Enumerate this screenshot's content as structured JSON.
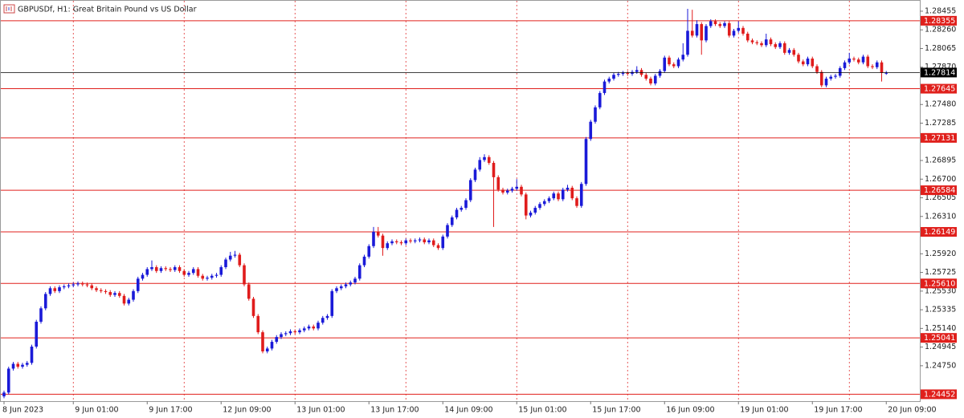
{
  "chart_data": {
    "type": "candlestick",
    "title": "GBPUSDf, H1:  Great Britain Pound vs US Dollar",
    "up_color": "#1a1ad8",
    "down_color": "#e01c1c",
    "level_color": "#e0201c",
    "current_price": 1.27814,
    "current_price_color": "#000000",
    "ylim": [
      1.2438,
      1.2853
    ],
    "yticks": [
      1.28455,
      {
        "value": 1.2826,
        "label": "1.28260"
      },
      1.28065,
      {
        "value": 1.2787,
        "label": "1.27870"
      },
      {
        "value": 1.2748,
        "label": "1.27480"
      },
      1.27285,
      1.26895,
      {
        "value": 1.267,
        "label": "1.26700"
      },
      1.26505,
      {
        "value": 1.2631,
        "label": "1.26310"
      },
      {
        "value": 1.2592,
        "label": "1.25920"
      },
      1.25725,
      {
        "value": 1.2553,
        "label": "1.25530"
      },
      1.25335,
      {
        "value": 1.2514,
        "label": "1.25140"
      },
      1.24945,
      {
        "value": 1.2475,
        "label": "1.24750"
      }
    ],
    "levels": [
      1.28355,
      1.27645,
      1.27131,
      1.26584,
      1.26149,
      {
        "value": 1.2561,
        "label": "1.25610"
      },
      1.25041,
      1.24452
    ],
    "categories": [
      "8 Jun 2023",
      null,
      null,
      null,
      null,
      null,
      null,
      null,
      null,
      null,
      null,
      null,
      null,
      null,
      null,
      "9 Jun 01:00",
      null,
      null,
      null,
      null,
      null,
      null,
      null,
      null,
      null,
      null,
      null,
      null,
      null,
      null,
      null,
      "9 Jun 17:00",
      null,
      null,
      null,
      null,
      null,
      null,
      null,
      null,
      null,
      null,
      null,
      null,
      null,
      null,
      null,
      "12 Jun 09:00",
      null,
      null,
      null,
      null,
      null,
      null,
      null,
      null,
      null,
      null,
      null,
      null,
      null,
      null,
      null,
      "13 Jun 01:00",
      null,
      null,
      null,
      null,
      null,
      null,
      null,
      null,
      null,
      null,
      null,
      null,
      null,
      null,
      null,
      "13 Jun 17:00",
      null,
      null,
      null,
      null,
      null,
      null,
      null,
      null,
      null,
      null,
      null,
      null,
      null,
      null,
      null,
      "14 Jun 09:00",
      null,
      null,
      null,
      null,
      null,
      null,
      null,
      null,
      null,
      null,
      null,
      null,
      null,
      null,
      null,
      "15 Jun 01:00",
      null,
      null,
      null,
      null,
      null,
      null,
      null,
      null,
      null,
      null,
      null,
      null,
      null,
      null,
      null,
      "15 Jun 17:00",
      null,
      null,
      null,
      null,
      null,
      null,
      null,
      null,
      null,
      null,
      null,
      null,
      null,
      null,
      null,
      "16 Jun 09:00",
      null,
      null,
      null,
      null,
      null,
      null,
      null,
      null,
      null,
      null,
      null,
      null,
      null,
      null,
      null,
      "19 Jun 01:00",
      null,
      null,
      null,
      null,
      null,
      null,
      null,
      null,
      null,
      null,
      null,
      null,
      null,
      null,
      null,
      "19 Jun 17:00",
      null,
      null,
      null,
      null,
      null,
      null,
      null,
      null,
      null,
      null,
      null,
      null,
      null,
      null,
      null,
      "20 Jun 09:00"
    ],
    "ohlc": [
      [
        1.2443,
        1.2449,
        1.2441,
        1.2447
      ],
      [
        1.2447,
        1.2474,
        1.2445,
        1.2472
      ],
      [
        1.2472,
        1.2479,
        1.247,
        1.2477
      ],
      [
        1.2477,
        1.2479,
        1.2472,
        1.2474
      ],
      [
        1.2474,
        1.2478,
        1.2472,
        1.2476
      ],
      [
        1.2476,
        1.248,
        1.2474,
        1.2478
      ],
      [
        1.2478,
        1.2497,
        1.2476,
        1.2495
      ],
      [
        1.2495,
        1.2523,
        1.2493,
        1.2521
      ],
      [
        1.2521,
        1.2537,
        1.2519,
        1.2535
      ],
      [
        1.2535,
        1.2552,
        1.2533,
        1.255
      ],
      [
        1.255,
        1.2558,
        1.2548,
        1.2556
      ],
      [
        1.2556,
        1.2558,
        1.2551,
        1.2553
      ],
      [
        1.2553,
        1.2559,
        1.2551,
        1.2557
      ],
      [
        1.2557,
        1.256,
        1.2555,
        1.2558
      ],
      [
        1.2558,
        1.2561,
        1.2556,
        1.2559
      ],
      [
        1.2559,
        1.2562,
        1.2557,
        1.256
      ],
      [
        1.256,
        1.2563,
        1.2558,
        1.2561
      ],
      [
        1.2561,
        1.2563,
        1.2558,
        1.256
      ],
      [
        1.256,
        1.2562,
        1.2557,
        1.2559
      ],
      [
        1.2559,
        1.2561,
        1.2554,
        1.2556
      ],
      [
        1.2556,
        1.2558,
        1.2552,
        1.2554
      ],
      [
        1.2554,
        1.2556,
        1.2551,
        1.2553
      ],
      [
        1.2553,
        1.2555,
        1.255,
        1.2552
      ],
      [
        1.2552,
        1.2554,
        1.2547,
        1.2549
      ],
      [
        1.2549,
        1.2553,
        1.2547,
        1.2551
      ],
      [
        1.2551,
        1.2553,
        1.2546,
        1.2548
      ],
      [
        1.2548,
        1.255,
        1.2538,
        1.254
      ],
      [
        1.254,
        1.2546,
        1.2538,
        1.2544
      ],
      [
        1.2544,
        1.2555,
        1.2542,
        1.2553
      ],
      [
        1.2553,
        1.2568,
        1.2551,
        1.2566
      ],
      [
        1.2566,
        1.2572,
        1.2564,
        1.257
      ],
      [
        1.257,
        1.2578,
        1.2568,
        1.2576
      ],
      [
        1.2576,
        1.2585,
        1.2574,
        1.2578
      ],
      [
        1.2578,
        1.258,
        1.2572,
        1.2574
      ],
      [
        1.2574,
        1.2579,
        1.2572,
        1.2577
      ],
      [
        1.2577,
        1.2579,
        1.2574,
        1.2576
      ],
      [
        1.2576,
        1.2578,
        1.2573,
        1.2575
      ],
      [
        1.2575,
        1.258,
        1.2573,
        1.2578
      ],
      [
        1.2578,
        1.258,
        1.2572,
        1.2574
      ],
      [
        1.2574,
        1.2576,
        1.2568,
        1.257
      ],
      [
        1.257,
        1.2574,
        1.2568,
        1.2572
      ],
      [
        1.2572,
        1.2578,
        1.257,
        1.2576
      ],
      [
        1.2576,
        1.2578,
        1.2567,
        1.2569
      ],
      [
        1.2569,
        1.2571,
        1.2564,
        1.2566
      ],
      [
        1.2566,
        1.2569,
        1.2564,
        1.2567
      ],
      [
        1.2567,
        1.2571,
        1.2565,
        1.2569
      ],
      [
        1.2569,
        1.2572,
        1.2567,
        1.257
      ],
      [
        1.257,
        1.258,
        1.2568,
        1.2578
      ],
      [
        1.2578,
        1.2588,
        1.2576,
        1.2586
      ],
      [
        1.2586,
        1.2594,
        1.2584,
        1.259
      ],
      [
        1.259,
        1.2595,
        1.2588,
        1.2591
      ],
      [
        1.2591,
        1.2593,
        1.2578,
        1.258
      ],
      [
        1.258,
        1.2582,
        1.2558,
        1.256
      ],
      [
        1.256,
        1.2562,
        1.2543,
        1.2545
      ],
      [
        1.2545,
        1.2547,
        1.2525,
        1.2527
      ],
      [
        1.2527,
        1.2529,
        1.2508,
        1.251
      ],
      [
        1.251,
        1.2512,
        1.2488,
        1.249
      ],
      [
        1.249,
        1.2495,
        1.2488,
        1.2493
      ],
      [
        1.2493,
        1.2502,
        1.2491,
        1.25
      ],
      [
        1.25,
        1.2507,
        1.2498,
        1.2505
      ],
      [
        1.2505,
        1.251,
        1.2503,
        1.2508
      ],
      [
        1.2508,
        1.2511,
        1.2506,
        1.2509
      ],
      [
        1.2509,
        1.2513,
        1.2507,
        1.2511
      ],
      [
        1.2511,
        1.2513,
        1.2508,
        1.251
      ],
      [
        1.251,
        1.2514,
        1.2508,
        1.2512
      ],
      [
        1.2512,
        1.2516,
        1.251,
        1.2514
      ],
      [
        1.2514,
        1.2518,
        1.2512,
        1.2516
      ],
      [
        1.2516,
        1.2518,
        1.2512,
        1.2514
      ],
      [
        1.2514,
        1.2522,
        1.2512,
        1.252
      ],
      [
        1.252,
        1.2527,
        1.2518,
        1.2525
      ],
      [
        1.2525,
        1.2529,
        1.2523,
        1.2527
      ],
      [
        1.2527,
        1.2555,
        1.2525,
        1.2553
      ],
      [
        1.2553,
        1.2558,
        1.2551,
        1.2556
      ],
      [
        1.2556,
        1.256,
        1.2554,
        1.2558
      ],
      [
        1.2558,
        1.2562,
        1.2556,
        1.256
      ],
      [
        1.256,
        1.2564,
        1.2558,
        1.2562
      ],
      [
        1.2562,
        1.2568,
        1.256,
        1.2566
      ],
      [
        1.2566,
        1.2582,
        1.2564,
        1.258
      ],
      [
        1.258,
        1.2591,
        1.2578,
        1.2589
      ],
      [
        1.2589,
        1.2602,
        1.2587,
        1.26
      ],
      [
        1.26,
        1.262,
        1.2598,
        1.2615
      ],
      [
        1.2615,
        1.262,
        1.2609,
        1.2611
      ],
      [
        1.2611,
        1.2613,
        1.259,
        1.2598
      ],
      [
        1.2598,
        1.2605,
        1.2596,
        1.2603
      ],
      [
        1.2603,
        1.2607,
        1.2601,
        1.2605
      ],
      [
        1.2605,
        1.2607,
        1.2602,
        1.2604
      ],
      [
        1.2604,
        1.2606,
        1.2601,
        1.2603
      ],
      [
        1.2603,
        1.2608,
        1.2601,
        1.2606
      ],
      [
        1.2606,
        1.2608,
        1.2603,
        1.2605
      ],
      [
        1.2605,
        1.2608,
        1.2603,
        1.2606
      ],
      [
        1.2606,
        1.2609,
        1.2604,
        1.2607
      ],
      [
        1.2607,
        1.2609,
        1.2602,
        1.2604
      ],
      [
        1.2604,
        1.2608,
        1.2602,
        1.2606
      ],
      [
        1.2606,
        1.2608,
        1.2599,
        1.2601
      ],
      [
        1.2601,
        1.2603,
        1.2596,
        1.2598
      ],
      [
        1.2598,
        1.2612,
        1.2596,
        1.261
      ],
      [
        1.261,
        1.2624,
        1.2608,
        1.2622
      ],
      [
        1.2622,
        1.2632,
        1.262,
        1.263
      ],
      [
        1.263,
        1.264,
        1.2628,
        1.2638
      ],
      [
        1.2638,
        1.2642,
        1.2636,
        1.264
      ],
      [
        1.264,
        1.265,
        1.2638,
        1.2648
      ],
      [
        1.2648,
        1.2671,
        1.2646,
        1.2669
      ],
      [
        1.2669,
        1.2682,
        1.2667,
        1.268
      ],
      [
        1.268,
        1.2693,
        1.2678,
        1.269
      ],
      [
        1.269,
        1.2696,
        1.2688,
        1.2693
      ],
      [
        1.2693,
        1.2695,
        1.2685,
        1.2687
      ],
      [
        1.2687,
        1.2689,
        1.262,
        1.2672
      ],
      [
        1.2672,
        1.2674,
        1.2657,
        1.2659
      ],
      [
        1.2659,
        1.2661,
        1.2654,
        1.2656
      ],
      [
        1.2656,
        1.266,
        1.2654,
        1.2658
      ],
      [
        1.2658,
        1.2662,
        1.2656,
        1.266
      ],
      [
        1.266,
        1.267,
        1.2658,
        1.2662
      ],
      [
        1.2662,
        1.2664,
        1.2652,
        1.2654
      ],
      [
        1.2654,
        1.2656,
        1.2628,
        1.2632
      ],
      [
        1.2632,
        1.2637,
        1.263,
        1.2635
      ],
      [
        1.2635,
        1.2642,
        1.2633,
        1.264
      ],
      [
        1.264,
        1.2646,
        1.2638,
        1.2644
      ],
      [
        1.2644,
        1.2649,
        1.2642,
        1.2647
      ],
      [
        1.2647,
        1.2652,
        1.2645,
        1.265
      ],
      [
        1.265,
        1.2657,
        1.2648,
        1.2655
      ],
      [
        1.2655,
        1.2657,
        1.2647,
        1.2649
      ],
      [
        1.2649,
        1.2661,
        1.2647,
        1.2659
      ],
      [
        1.2659,
        1.2664,
        1.2657,
        1.2661
      ],
      [
        1.2661,
        1.2663,
        1.2648,
        1.265
      ],
      [
        1.265,
        1.2652,
        1.264,
        1.2642
      ],
      [
        1.2642,
        1.2667,
        1.264,
        1.2665
      ],
      [
        1.2665,
        1.2714,
        1.2663,
        1.2712
      ],
      [
        1.2712,
        1.2732,
        1.271,
        1.273
      ],
      [
        1.273,
        1.2747,
        1.2728,
        1.2745
      ],
      [
        1.2745,
        1.2762,
        1.2743,
        1.276
      ],
      [
        1.276,
        1.2774,
        1.2758,
        1.2772
      ],
      [
        1.2772,
        1.2777,
        1.277,
        1.2775
      ],
      [
        1.2775,
        1.2781,
        1.2773,
        1.2779
      ],
      [
        1.2779,
        1.2782,
        1.2777,
        1.278
      ],
      [
        1.278,
        1.2783,
        1.2778,
        1.2781
      ],
      [
        1.2781,
        1.2783,
        1.2778,
        1.278
      ],
      [
        1.278,
        1.2784,
        1.2778,
        1.2782
      ],
      [
        1.2782,
        1.2788,
        1.278,
        1.2784
      ],
      [
        1.2784,
        1.2786,
        1.2777,
        1.2779
      ],
      [
        1.2779,
        1.2781,
        1.2773,
        1.2775
      ],
      [
        1.2775,
        1.2777,
        1.2768,
        1.277
      ],
      [
        1.277,
        1.278,
        1.2768,
        1.2778
      ],
      [
        1.2778,
        1.2785,
        1.2776,
        1.2783
      ],
      [
        1.2783,
        1.2799,
        1.2781,
        1.2797
      ],
      [
        1.2797,
        1.2799,
        1.2788,
        1.279
      ],
      [
        1.279,
        1.2792,
        1.2786,
        1.2788
      ],
      [
        1.2788,
        1.2797,
        1.2786,
        1.2795
      ],
      [
        1.2795,
        1.2812,
        1.2793,
        1.28
      ],
      [
        1.28,
        1.2848,
        1.2798,
        1.2825
      ],
      [
        1.2825,
        1.2847,
        1.2818,
        1.282
      ],
      [
        1.282,
        1.2836,
        1.2818,
        1.2832
      ],
      [
        1.2832,
        1.2834,
        1.28,
        1.2815
      ],
      [
        1.2815,
        1.2832,
        1.2813,
        1.283
      ],
      [
        1.283,
        1.2837,
        1.2828,
        1.2835
      ],
      [
        1.2835,
        1.2837,
        1.283,
        1.2832
      ],
      [
        1.2832,
        1.2834,
        1.2828,
        1.283
      ],
      [
        1.283,
        1.2835,
        1.2828,
        1.2833
      ],
      [
        1.2833,
        1.2835,
        1.2818,
        1.282
      ],
      [
        1.282,
        1.2827,
        1.2818,
        1.2825
      ],
      [
        1.2825,
        1.2835,
        1.2823,
        1.2828
      ],
      [
        1.2828,
        1.283,
        1.282,
        1.2822
      ],
      [
        1.2822,
        1.2824,
        1.2813,
        1.2815
      ],
      [
        1.2815,
        1.2817,
        1.2811,
        1.2813
      ],
      [
        1.2813,
        1.2815,
        1.281,
        1.2812
      ],
      [
        1.2812,
        1.2814,
        1.2808,
        1.281
      ],
      [
        1.281,
        1.2822,
        1.2808,
        1.2816
      ],
      [
        1.2816,
        1.2818,
        1.2809,
        1.2811
      ],
      [
        1.2811,
        1.2813,
        1.2806,
        1.2808
      ],
      [
        1.2808,
        1.2814,
        1.2806,
        1.2812
      ],
      [
        1.2812,
        1.2814,
        1.28,
        1.2802
      ],
      [
        1.2802,
        1.2807,
        1.28,
        1.2805
      ],
      [
        1.2805,
        1.2807,
        1.2798,
        1.28
      ],
      [
        1.28,
        1.2802,
        1.2791,
        1.2793
      ],
      [
        1.2793,
        1.2795,
        1.2788,
        1.279
      ],
      [
        1.279,
        1.2798,
        1.2788,
        1.2796
      ],
      [
        1.2796,
        1.2798,
        1.2786,
        1.2788
      ],
      [
        1.2788,
        1.279,
        1.278,
        1.2782
      ],
      [
        1.2782,
        1.2784,
        1.2766,
        1.2768
      ],
      [
        1.2768,
        1.2777,
        1.2766,
        1.2775
      ],
      [
        1.2775,
        1.2779,
        1.2773,
        1.2777
      ],
      [
        1.2777,
        1.278,
        1.2775,
        1.2778
      ],
      [
        1.2778,
        1.2788,
        1.2776,
        1.2786
      ],
      [
        1.2786,
        1.2794,
        1.2784,
        1.2792
      ],
      [
        1.2792,
        1.2802,
        1.279,
        1.2796
      ],
      [
        1.2796,
        1.2798,
        1.2793,
        1.2795
      ],
      [
        1.2795,
        1.2797,
        1.279,
        1.2792
      ],
      [
        1.2792,
        1.28,
        1.279,
        1.2798
      ],
      [
        1.2798,
        1.28,
        1.2786,
        1.2788
      ],
      [
        1.2788,
        1.279,
        1.2785,
        1.2787
      ],
      [
        1.2787,
        1.2794,
        1.2785,
        1.2792
      ],
      [
        1.2792,
        1.2794,
        1.2772,
        1.2781
      ],
      [
        1.2781,
        1.2783,
        1.2779,
        1.2781
      ]
    ]
  }
}
